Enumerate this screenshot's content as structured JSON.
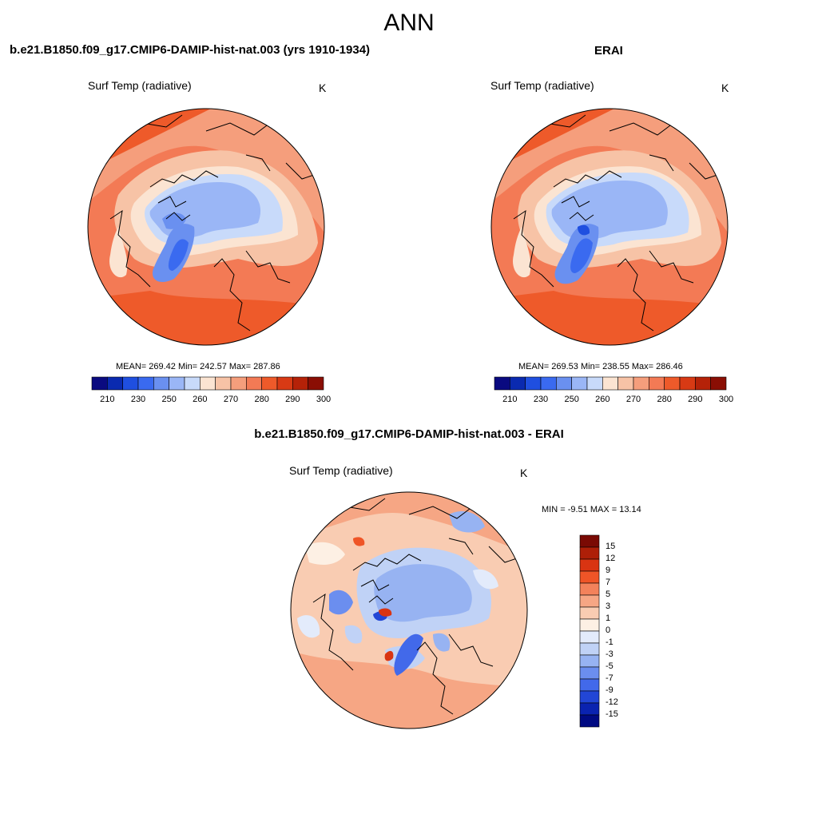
{
  "page": {
    "title": "ANN"
  },
  "panels": [
    {
      "title": "b.e21.B1850.f09_g17.CMIP6-DAMIP-hist-nat.003 (yrs 1910-1934)",
      "variable": "Surf Temp (radiative)",
      "units": "K",
      "stats": "MEAN= 269.42  Min= 242.57  Max= 287.86"
    },
    {
      "title": "ERAI",
      "variable": "Surf Temp (radiative)",
      "units": "K",
      "stats": "MEAN= 269.53  Min= 238.55  Max= 286.46"
    },
    {
      "title": "b.e21.B1850.f09_g17.CMIP6-DAMIP-hist-nat.003 - ERAI",
      "variable": "Surf Temp (radiative)",
      "units": "K",
      "stats": "MIN =  -9.51 MAX =  13.14"
    }
  ],
  "colorbar_abs": {
    "ticks": [
      "210",
      "230",
      "250",
      "260",
      "270",
      "280",
      "290",
      "300"
    ],
    "colors": [
      "#0a0a80",
      "#0a2ab0",
      "#1f4fe0",
      "#3a6af0",
      "#6a90f0",
      "#9ab6f6",
      "#c8dafa",
      "#fbe4d2",
      "#f7c3a6",
      "#f59e7c",
      "#f37a55",
      "#ee5a2a",
      "#d83a14",
      "#b52208",
      "#8a0e04"
    ]
  },
  "colorbar_diff": {
    "labels": [
      "15",
      "12",
      "9",
      "7",
      "5",
      "3",
      "1",
      "0",
      "-1",
      "-3",
      "-5",
      "-7",
      "-9",
      "-12",
      "-15"
    ],
    "colors": [
      "#7a0a04",
      "#ae1f08",
      "#d93412",
      "#ef5527",
      "#f3825b",
      "#f6a684",
      "#f9ccb2",
      "#fdf0e4",
      "#e3ebfb",
      "#c0d2f6",
      "#97b3f2",
      "#6b8eef",
      "#4269ea",
      "#2246d6",
      "#0a23b0",
      "#000a82"
    ]
  },
  "chart_data": [
    {
      "type": "heatmap",
      "title": "b.e21.B1850.f09_g17.CMIP6-DAMIP-hist-nat.003 (yrs 1910-1934)",
      "variable": "Surf Temp (radiative)",
      "units": "K",
      "projection": "north-polar-stereographic",
      "mean": 269.42,
      "min": 242.57,
      "max": 287.86,
      "levels": [
        210,
        220,
        230,
        240,
        250,
        255,
        260,
        265,
        270,
        275,
        280,
        285,
        290,
        295,
        300
      ]
    },
    {
      "type": "heatmap",
      "title": "ERAI",
      "variable": "Surf Temp (radiative)",
      "units": "K",
      "projection": "north-polar-stereographic",
      "mean": 269.53,
      "min": 238.55,
      "max": 286.46,
      "levels": [
        210,
        220,
        230,
        240,
        250,
        255,
        260,
        265,
        270,
        275,
        280,
        285,
        290,
        295,
        300
      ]
    },
    {
      "type": "heatmap",
      "title": "b.e21.B1850.f09_g17.CMIP6-DAMIP-hist-nat.003 - ERAI",
      "variable": "Surf Temp (radiative)",
      "units": "K",
      "projection": "north-polar-stereographic",
      "min": -9.51,
      "max": 13.14,
      "levels": [
        -15,
        -12,
        -9,
        -7,
        -5,
        -3,
        -1,
        0,
        1,
        3,
        5,
        7,
        9,
        12,
        15
      ]
    }
  ]
}
